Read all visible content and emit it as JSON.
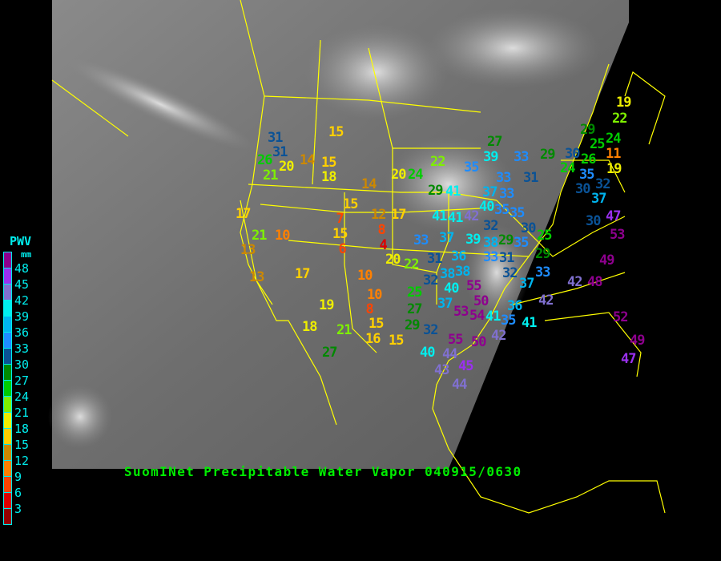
{
  "title": "SuomINet Precipitable Water Vapor 040915/0630",
  "legend": {
    "title": "PWV",
    "unit": "mm",
    "ticks": [
      "48",
      "45",
      "42",
      "39",
      "36",
      "33",
      "30",
      "27",
      "24",
      "21",
      "18",
      "15",
      "12",
      "9",
      "6",
      "3"
    ],
    "colors": [
      "#8e008e",
      "#9a30f0",
      "#8070d0",
      "#00eeee",
      "#00b4ee",
      "#1e8cff",
      "#0a5296",
      "#008a00",
      "#00cc00",
      "#7ef000",
      "#eeee00",
      "#ffd000",
      "#cc8800",
      "#ff8000",
      "#ff4400",
      "#dd0000",
      "#940000"
    ]
  },
  "stations": [
    31,
    31,
    26,
    20,
    14,
    15,
    21,
    18,
    15,
    14,
    20,
    24,
    22,
    29,
    41,
    15,
    17,
    7,
    12,
    17,
    8,
    15,
    6,
    4,
    21,
    10,
    13,
    13,
    17,
    33,
    20,
    22,
    31,
    37,
    39,
    38,
    29,
    41,
    41,
    42,
    40,
    35,
    37,
    33,
    35,
    32,
    30,
    35,
    25,
    29,
    33,
    31,
    32,
    33,
    37,
    42,
    42,
    48,
    49,
    53,
    47,
    30,
    37,
    30,
    32,
    35,
    19,
    11,
    24,
    26,
    29,
    30,
    25,
    29,
    24,
    22,
    19,
    27,
    39,
    33,
    35,
    33,
    31,
    36,
    38,
    38,
    40,
    55,
    50,
    37,
    53,
    54,
    41,
    36,
    35,
    42,
    41,
    55,
    50,
    40,
    44,
    43,
    45,
    44,
    32,
    29,
    27,
    25,
    10,
    10,
    8,
    15,
    16,
    15,
    19,
    18,
    21,
    27,
    52,
    49,
    47,
    32
  ]
}
